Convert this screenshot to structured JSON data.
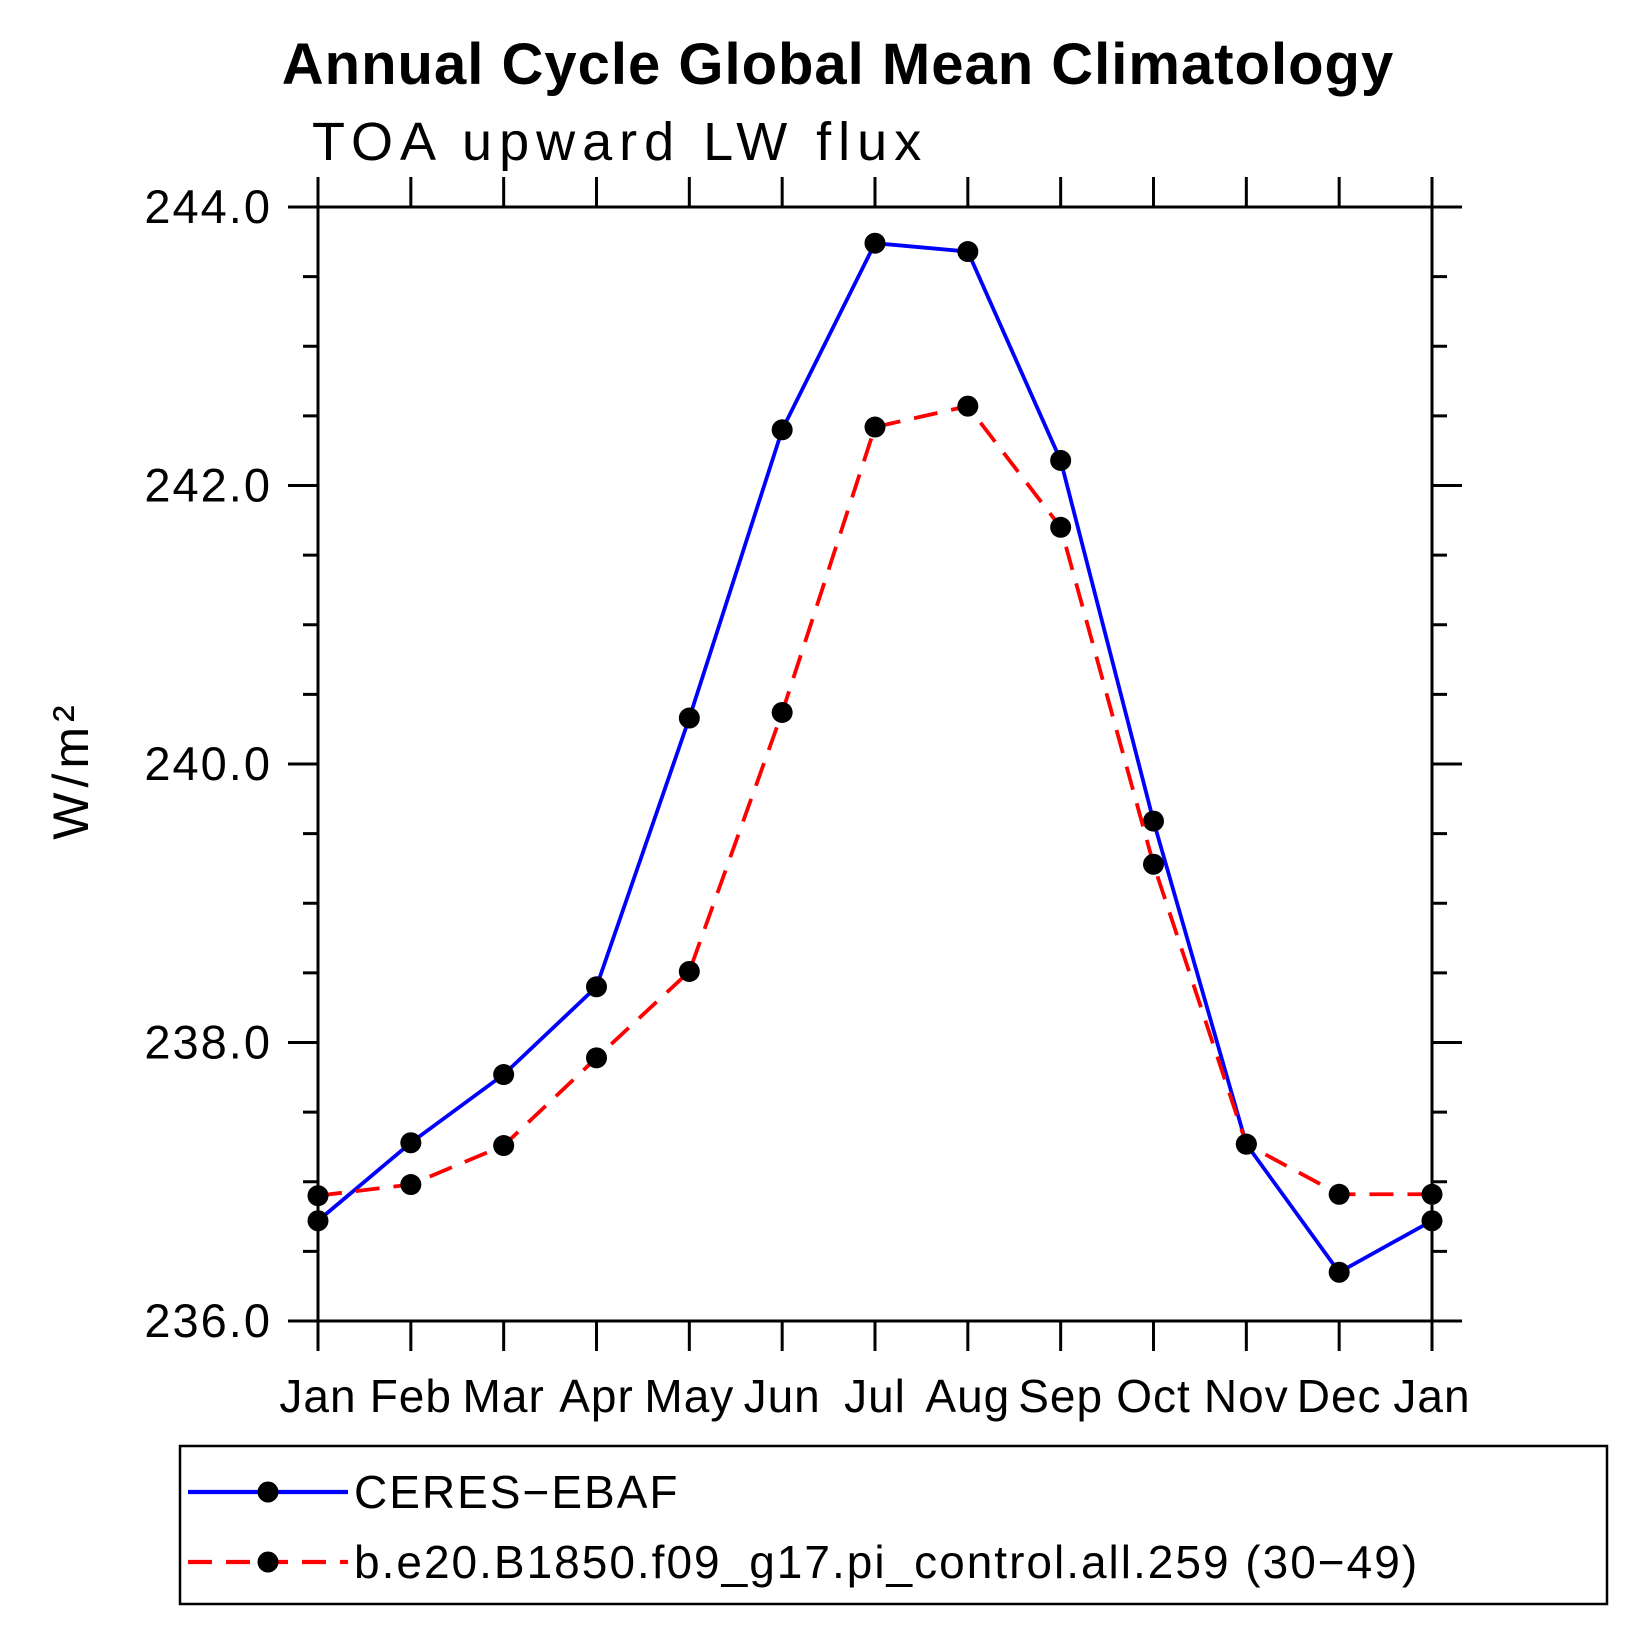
{
  "chart_data": {
    "type": "line",
    "title": "Annual Cycle Global Mean Climatology",
    "subtitle": "TOA upward LW flux",
    "ylabel": "W/m²",
    "xlabel": "",
    "x_categories": [
      "Jan",
      "Feb",
      "Mar",
      "Apr",
      "May",
      "Jun",
      "Jul",
      "Aug",
      "Sep",
      "Oct",
      "Nov",
      "Dec",
      "Jan"
    ],
    "ylim": [
      236.0,
      244.0
    ],
    "ytick_major_step": 2.0,
    "ytick_minor_step": 0.5,
    "ytick_labels": [
      "236.0",
      "238.0",
      "240.0",
      "242.0",
      "244.0"
    ],
    "grid": false,
    "legend_position": "bottom-left-box",
    "axis_color": "#000000",
    "marker_color": "#000000",
    "series": [
      {
        "name": "CERES−EBAF",
        "color": "#0000ff",
        "line_style": "solid",
        "marker": "circle",
        "values": [
          236.72,
          237.28,
          237.77,
          238.4,
          240.33,
          242.4,
          243.74,
          243.68,
          242.18,
          239.59,
          237.27,
          236.35,
          236.72
        ]
      },
      {
        "name": "b.e20.B1850.f09_g17.pi_control.all.259 (30−49)",
        "color": "#ff0000",
        "line_style": "dashed",
        "marker": "circle",
        "values": [
          236.9,
          236.98,
          237.26,
          237.89,
          238.51,
          240.37,
          242.42,
          242.57,
          241.7,
          239.28,
          237.27,
          236.91,
          236.91
        ]
      }
    ]
  }
}
